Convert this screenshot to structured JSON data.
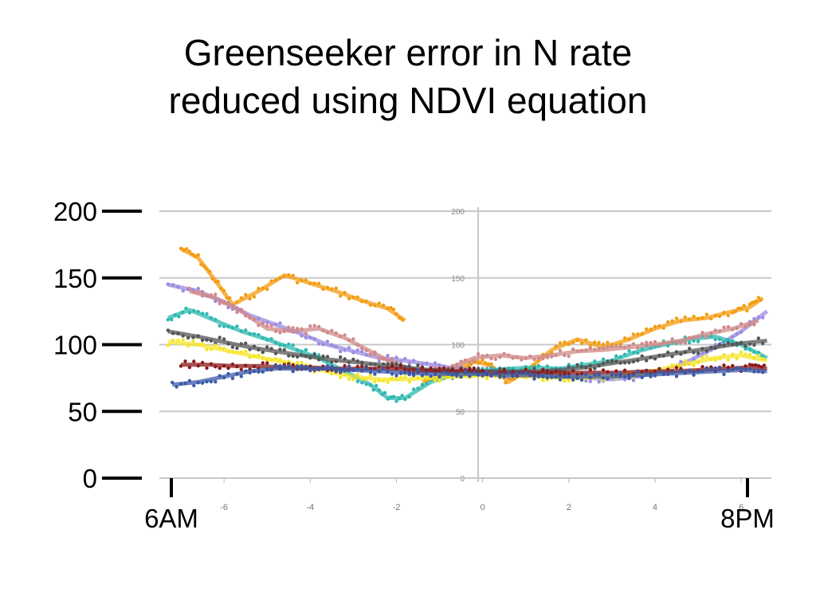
{
  "chart_data": {
    "type": "line",
    "title_lines": [
      "Greenseeker error in N rate",
      "reduced using NDVI equation"
    ],
    "y_ticks": [
      "0",
      "50",
      "100",
      "150",
      "200"
    ],
    "y_tick_values": [
      0,
      50,
      100,
      150,
      200
    ],
    "ylim": [
      0,
      200
    ],
    "x_end_labels": [
      "6AM",
      "8PM"
    ],
    "inner_x_ticks": [
      "-6",
      "-4",
      "-2",
      "0",
      "2",
      "4",
      "6"
    ],
    "inner_x_values": [
      -6,
      -4,
      -2,
      0,
      2,
      4,
      6
    ],
    "inner_y_ticks": [
      "0",
      "50",
      "100",
      "150",
      "200"
    ],
    "xlim": [
      -7.5,
      6.7
    ],
    "grid": true,
    "series": [
      {
        "color": "#f39c12",
        "x": [
          -7.0,
          -6.6,
          -6.2,
          -5.8,
          -5.2,
          -4.6,
          -4.0,
          -3.4,
          -2.8,
          -2.2,
          -1.8
        ],
        "y": [
          172,
          165,
          148,
          130,
          140,
          152,
          146,
          140,
          133,
          127,
          118
        ]
      },
      {
        "color": "#f39c12",
        "x": [
          -1.4,
          -1.0,
          -0.6,
          -0.2,
          0.2,
          0.6,
          1.0,
          1.6,
          2.2,
          2.8,
          3.4,
          4.0,
          4.6,
          5.2,
          5.8,
          6.2,
          6.5
        ],
        "y": [
          72,
          76,
          82,
          88,
          84,
          72,
          80,
          96,
          104,
          98,
          104,
          112,
          118,
          120,
          125,
          128,
          135
        ]
      },
      {
        "color": "#9b8be0",
        "x": [
          -7.3,
          -6.6,
          -6.0,
          -5.4,
          -4.8,
          -4.2,
          -3.6,
          -3.0,
          -2.4,
          -1.8,
          -1.2,
          -0.6,
          0.0,
          0.6,
          1.2,
          1.8,
          2.4,
          3.0,
          3.6,
          4.2,
          4.8,
          5.4,
          6.0,
          6.6
        ],
        "y": [
          145,
          140,
          132,
          122,
          115,
          108,
          100,
          95,
          90,
          88,
          85,
          82,
          80,
          78,
          78,
          77,
          75,
          74,
          76,
          80,
          88,
          98,
          110,
          125
        ]
      },
      {
        "color": "#2fb8b0",
        "x": [
          -7.3,
          -6.8,
          -6.2,
          -5.6,
          -5.0,
          -4.4,
          -3.8,
          -3.2,
          -2.6,
          -2.2,
          -1.8,
          -1.2,
          -0.6,
          0.0,
          0.6,
          1.2,
          1.8,
          2.4,
          3.0,
          3.6,
          4.2,
          4.8,
          5.4,
          6.0,
          6.6
        ],
        "y": [
          120,
          126,
          118,
          110,
          104,
          97,
          90,
          80,
          70,
          60,
          60,
          72,
          78,
          80,
          82,
          83,
          82,
          85,
          88,
          95,
          100,
          104,
          106,
          100,
          90
        ]
      },
      {
        "color": "#d08a8a",
        "x": [
          -6.8,
          -6.2,
          -5.6,
          -5.0,
          -4.4,
          -3.8,
          -3.2,
          -2.6,
          -2.0,
          -1.4,
          -0.8,
          -0.2,
          0.4,
          1.0,
          1.6,
          2.2,
          2.8,
          3.4,
          4.0,
          4.6,
          5.2,
          5.8,
          6.4
        ],
        "y": [
          140,
          135,
          125,
          112,
          110,
          112,
          105,
          95,
          85,
          80,
          82,
          90,
          92,
          90,
          92,
          95,
          96,
          98,
          100,
          103,
          108,
          112,
          118
        ]
      },
      {
        "color": "#555555",
        "x": [
          -7.3,
          -6.6,
          -6.0,
          -5.4,
          -4.8,
          -4.2,
          -3.6,
          -3.0,
          -2.4,
          -1.8,
          -1.2,
          -0.6,
          0.0,
          0.6,
          1.2,
          1.8,
          2.4,
          3.0,
          3.6,
          4.2,
          4.8,
          5.4,
          6.0,
          6.6
        ],
        "y": [
          110,
          106,
          102,
          98,
          95,
          92,
          89,
          87,
          85,
          83,
          81,
          80,
          80,
          80,
          80,
          81,
          83,
          86,
          89,
          92,
          95,
          98,
          101,
          103
        ]
      },
      {
        "color": "#f5e62a",
        "x": [
          -7.3,
          -6.6,
          -6.0,
          -5.4,
          -4.8,
          -4.2,
          -3.6,
          -3.0,
          -2.4,
          -1.8,
          -1.2,
          -0.6,
          0.0,
          0.6,
          1.2,
          1.8,
          2.4,
          3.0,
          3.6,
          4.2,
          4.8,
          5.4,
          6.0,
          6.6
        ],
        "y": [
          102,
          100,
          96,
          92,
          88,
          84,
          80,
          76,
          74,
          74,
          75,
          76,
          77,
          77,
          76,
          75,
          75,
          76,
          78,
          82,
          86,
          90,
          92,
          88
        ]
      },
      {
        "color": "#8b1a1a",
        "x": [
          -7.0,
          -6.4,
          -5.8,
          -5.2,
          -4.6,
          -4.0,
          -3.4,
          -2.8,
          -2.2,
          -1.6,
          -1.0,
          -0.4,
          0.2,
          0.8,
          1.4,
          2.0,
          2.6,
          3.2,
          3.8,
          4.4,
          5.0,
          5.6,
          6.2,
          6.6
        ],
        "y": [
          85,
          85,
          84,
          84,
          83,
          83,
          82,
          82,
          82,
          81,
          80,
          80,
          79,
          79,
          79,
          79,
          79,
          79,
          80,
          80,
          81,
          82,
          83,
          82
        ]
      },
      {
        "color": "#3b5aa8",
        "x": [
          -7.2,
          -6.6,
          -6.0,
          -5.4,
          -4.8,
          -4.2,
          -3.6,
          -3.0,
          -2.4,
          -1.8,
          -1.2,
          -0.6,
          0.0,
          0.6,
          1.2,
          1.8,
          2.4,
          3.0,
          3.6,
          4.2,
          4.8,
          5.4,
          6.0,
          6.6
        ],
        "y": [
          70,
          72,
          76,
          80,
          82,
          82,
          82,
          81,
          80,
          79,
          78,
          78,
          78,
          77,
          77,
          76,
          76,
          76,
          77,
          78,
          79,
          80,
          81,
          80
        ]
      }
    ]
  }
}
